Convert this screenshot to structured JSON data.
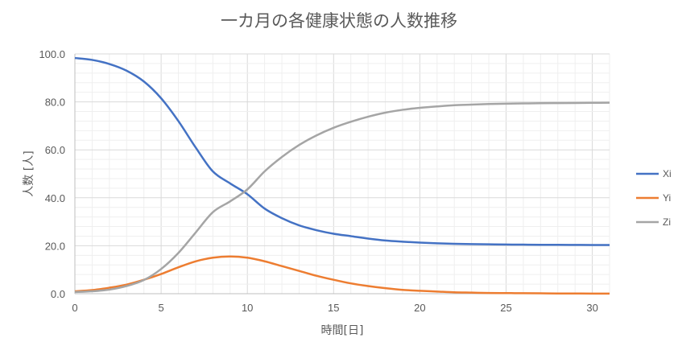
{
  "chart_data": {
    "type": "line",
    "title": "一カ月の各健康状態の人数推移",
    "xlabel": "時間[日]",
    "ylabel": "人数 [人]",
    "xlim": [
      0,
      31
    ],
    "ylim": [
      0,
      100
    ],
    "x_ticks": [
      "0",
      "5",
      "10",
      "15",
      "20",
      "25",
      "30"
    ],
    "y_ticks": [
      "0.0",
      "20.0",
      "40.0",
      "60.0",
      "80.0",
      "100.0"
    ],
    "grid": true,
    "legend_position": "right",
    "x": [
      0,
      1,
      2,
      3,
      4,
      5,
      6,
      7,
      8,
      9,
      10,
      11,
      12,
      13,
      14,
      15,
      16,
      17,
      18,
      19,
      20,
      21,
      22,
      23,
      24,
      25,
      26,
      27,
      28,
      29,
      30,
      31
    ],
    "series": [
      {
        "name": "Xi",
        "color": "#4472C4",
        "values": [
          98.3,
          97.5,
          95.8,
          93.0,
          88.5,
          81.5,
          72.0,
          61.0,
          51.0,
          46.0,
          41.5,
          35.5,
          31.5,
          28.5,
          26.5,
          25.0,
          24.0,
          23.0,
          22.2,
          21.7,
          21.3,
          21.0,
          20.8,
          20.7,
          20.6,
          20.5,
          20.45,
          20.4,
          20.4,
          20.35,
          20.3,
          20.3
        ]
      },
      {
        "name": "Yi",
        "color": "#ED7D31",
        "values": [
          1.0,
          1.5,
          2.5,
          3.8,
          5.8,
          8.2,
          11.0,
          13.5,
          15.0,
          15.5,
          15.0,
          13.5,
          11.5,
          9.5,
          7.5,
          5.8,
          4.3,
          3.2,
          2.3,
          1.6,
          1.2,
          0.9,
          0.6,
          0.45,
          0.3,
          0.25,
          0.2,
          0.15,
          0.1,
          0.08,
          0.06,
          0.05
        ]
      },
      {
        "name": "Zi",
        "color": "#A5A5A5",
        "values": [
          0.7,
          1.0,
          1.7,
          3.2,
          5.7,
          10.3,
          17.0,
          25.5,
          34.0,
          38.5,
          43.5,
          51.0,
          57.0,
          62.0,
          66.0,
          69.2,
          71.7,
          73.8,
          75.5,
          76.7,
          77.5,
          78.1,
          78.6,
          78.85,
          79.1,
          79.25,
          79.35,
          79.45,
          79.5,
          79.55,
          79.6,
          79.65
        ]
      }
    ]
  }
}
